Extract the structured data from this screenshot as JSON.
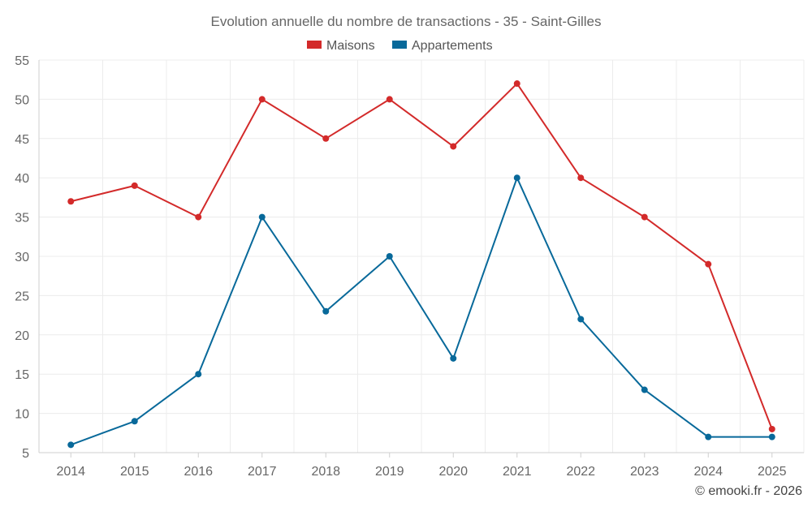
{
  "chart_data": {
    "type": "line",
    "title": "Evolution annuelle du nombre de transactions - 35 - Saint-Gilles",
    "x": [
      "2014",
      "2015",
      "2016",
      "2017",
      "2018",
      "2019",
      "2020",
      "2021",
      "2022",
      "2023",
      "2024",
      "2025"
    ],
    "series": [
      {
        "name": "Maisons",
        "color": "#d32a2a",
        "values": [
          37,
          39,
          35,
          50,
          45,
          50,
          44,
          52,
          40,
          35,
          29,
          8
        ]
      },
      {
        "name": "Appartements",
        "color": "#08699a",
        "values": [
          6,
          9,
          15,
          35,
          23,
          30,
          17,
          40,
          22,
          13,
          7,
          7
        ]
      }
    ],
    "ylim": [
      5,
      55
    ],
    "yticks": [
      5,
      10,
      15,
      20,
      25,
      30,
      35,
      40,
      45,
      50,
      55
    ],
    "xlabel": "",
    "ylabel": "",
    "grid": true,
    "legend_position": "top-center"
  },
  "credit": "© emooki.fr - 2026"
}
